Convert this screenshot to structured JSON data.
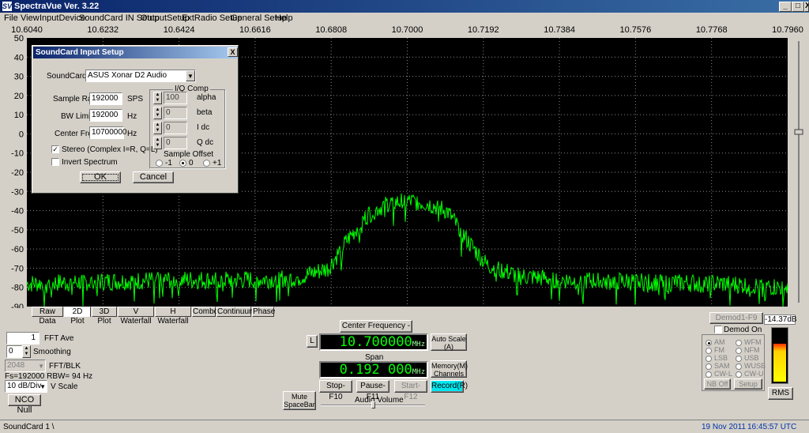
{
  "window": {
    "title": "SpectraVue Ver. 3.22",
    "app_icon": "SV",
    "min": "_",
    "max": "□",
    "close": "X"
  },
  "menu": [
    "File",
    "View",
    "InputDevice",
    "SoundCard IN Setup",
    "OutputSetup",
    "ExtRadio Setup",
    "General Setup",
    "Help"
  ],
  "chart_data": {
    "type": "line",
    "x_ticks": [
      "10.6040",
      "10.6232",
      "10.6424",
      "10.6616",
      "10.6808",
      "10.7000",
      "10.7192",
      "10.7384",
      "10.7576",
      "10.7768",
      "10.7960"
    ],
    "y_ticks": [
      "50",
      "40",
      "30",
      "20",
      "10",
      "0",
      "-10",
      "-20",
      "-30",
      "-40",
      "-50",
      "-60",
      "-70",
      "-80",
      "-90"
    ],
    "xlim": [
      10.604,
      10.796
    ],
    "ylim": [
      -90,
      50
    ],
    "series": [
      {
        "trace_color": "#00ff00",
        "x": [
          10.604,
          10.62,
          10.64,
          10.66,
          10.672,
          10.68,
          10.685,
          10.69,
          10.695,
          10.7,
          10.705,
          10.71,
          10.715,
          10.72,
          10.728,
          10.74,
          10.76,
          10.78,
          10.796
        ],
        "y": [
          -78,
          -77,
          -76,
          -76,
          -75,
          -70,
          -55,
          -42,
          -36,
          -35,
          -36,
          -40,
          -55,
          -68,
          -74,
          -76,
          -77,
          -78,
          -80
        ]
      }
    ],
    "grid": true,
    "background": "#000000"
  },
  "tabs": [
    "Raw Data",
    "2D Plot",
    "3D Plot",
    "V Waterfall",
    "H Waterfall",
    "Combo",
    "Continuum",
    "Phase"
  ],
  "left": {
    "fft_ave_value": "1",
    "fft_ave_label": "FFT Ave",
    "smoothing_value": "0",
    "smoothing_label": "Smoothing",
    "fft_blk_value": "2048",
    "fft_blk_label": "FFT/BLK",
    "fs_text": "Fs=192000 RBW=  94 Hz",
    "vscale_value": "10 dB/Div",
    "vscale_label": "V Scale",
    "nco_label": "NCO Null"
  },
  "center": {
    "cf_button": "Center Frequency - Ins",
    "l_button": "L",
    "freq_value": "10.700000",
    "freq_unit": "MHz",
    "span_label": "Span",
    "span_value": "0.192 000",
    "span_unit": "MHz",
    "auto_scale": "Auto Scale (A)",
    "memory": "Memory(M) Channels",
    "stop": "Stop-F10",
    "pause": "Pause-F11",
    "start": "Start-F12",
    "record": "Record(R)",
    "mute": "Mute SpaceBar",
    "audio_volume": "Audio Volume",
    "volume_level": 0.5
  },
  "right": {
    "demod_btn": "Demod1-F9",
    "demod_on": "Demod On",
    "level_readout": "-14.37dB",
    "modes_left": [
      "AM",
      "FM",
      "LSB",
      "SAM",
      "CW-L"
    ],
    "modes_right": [
      "WFM",
      "NFM",
      "USB",
      "WUSB",
      "CW-U"
    ],
    "nb_off": "NB Off",
    "setup": "Setup",
    "rms": "RMS",
    "meter_level": 0.72
  },
  "status": {
    "left": "SoundCard 1  \\",
    "date": "19 Nov 2011",
    "time": "16:45:57 UTC"
  },
  "dialog": {
    "title": "SoundCard Input Setup",
    "close": "X",
    "soundcard_label": "SoundCard",
    "soundcard_value": "ASUS Xonar D2 Audio",
    "sample_rate_label": "Sample Rate",
    "sample_rate_value": "192000",
    "sample_rate_unit": "SPS",
    "bw_label": "BW Limit",
    "bw_value": "192000",
    "bw_unit": "Hz",
    "cf_label": "Center Freq",
    "cf_value": "10700000",
    "cf_unit": "Hz",
    "stereo_label": "Stereo (Complex I=R, Q=L)",
    "invert_label": "Invert Spectrum",
    "iq_title": "I/Q Comp",
    "iq_rows": [
      {
        "value": "100",
        "label": "alpha"
      },
      {
        "value": "0",
        "label": "beta"
      },
      {
        "value": "0",
        "label": "I dc"
      },
      {
        "value": "0",
        "label": "Q dc"
      }
    ],
    "offset_title": "Sample Offset",
    "offsets": [
      "-1",
      "0",
      "+1"
    ],
    "ok": "OK",
    "cancel": "Cancel"
  }
}
